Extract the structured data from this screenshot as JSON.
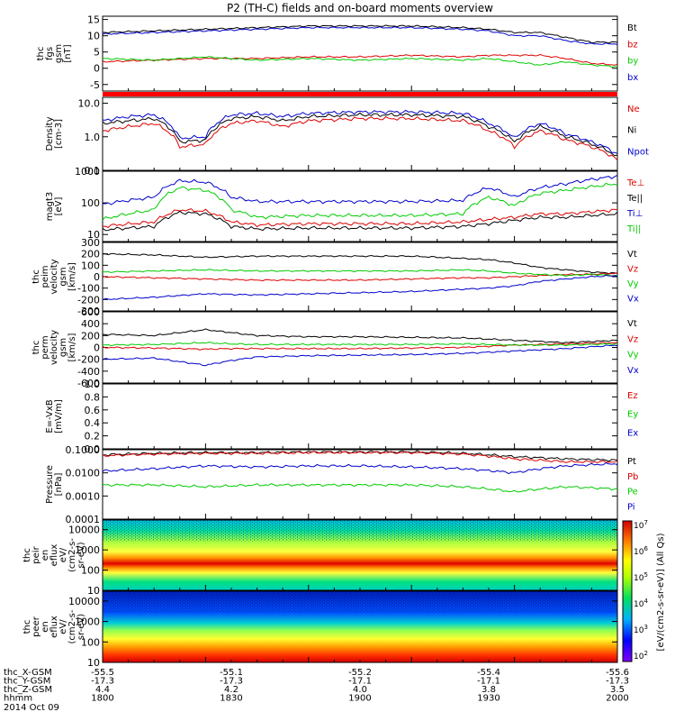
{
  "title": "P2 (TH-C) fields and on-board moments overview",
  "chart_data": [
    {
      "type": "line",
      "panel": "fgs",
      "ylabel": [
        "thc",
        "fgs",
        "gsm",
        "[nT]"
      ],
      "yticks": [
        "15",
        "10",
        "5",
        "0",
        "-5"
      ],
      "ylim": [
        -7,
        16
      ],
      "log": false,
      "series": [
        {
          "name": "Bt",
          "color": "#000000",
          "x": [
            0,
            0.1,
            0.2,
            0.3,
            0.4,
            0.5,
            0.6,
            0.7,
            0.75,
            0.8,
            0.85,
            0.9,
            0.95,
            1.0
          ],
          "values": [
            11,
            11.5,
            12,
            12.5,
            13,
            13,
            13,
            12.5,
            12,
            11,
            11,
            9.5,
            8,
            8
          ]
        },
        {
          "name": "bz",
          "color": "#dd0000",
          "x": [
            0,
            0.1,
            0.2,
            0.3,
            0.4,
            0.5,
            0.6,
            0.7,
            0.75,
            0.8,
            0.85,
            0.9,
            0.95,
            1.0
          ],
          "values": [
            2,
            2.5,
            3,
            3,
            3.5,
            3.5,
            4,
            3.5,
            4,
            4,
            4,
            3,
            1.5,
            1
          ]
        },
        {
          "name": "by",
          "color": "#00cc00",
          "x": [
            0,
            0.1,
            0.2,
            0.3,
            0.4,
            0.5,
            0.6,
            0.7,
            0.75,
            0.8,
            0.85,
            0.9,
            0.95,
            1.0
          ],
          "values": [
            3,
            2.5,
            3.5,
            2.5,
            3,
            2.5,
            3,
            2.5,
            3,
            2,
            1,
            2,
            1,
            0.5
          ]
        },
        {
          "name": "bx",
          "color": "#0000cc",
          "x": [
            0,
            0.1,
            0.2,
            0.3,
            0.4,
            0.5,
            0.6,
            0.7,
            0.75,
            0.8,
            0.85,
            0.9,
            0.95,
            1.0
          ],
          "values": [
            10.5,
            11,
            11.5,
            12,
            12.5,
            12.5,
            12.5,
            12,
            11.5,
            10,
            10,
            8.5,
            7.5,
            7.5
          ]
        }
      ]
    },
    {
      "type": "line",
      "panel": "density",
      "ylabel": [
        "Density",
        "[cm-3]"
      ],
      "yticks": [
        "10.0",
        "1.0",
        "0.1"
      ],
      "ylim": [
        0.1,
        15
      ],
      "log": true,
      "series": [
        {
          "name": "Ne",
          "color": "#dd0000",
          "x": [
            0,
            0.05,
            0.1,
            0.15,
            0.2,
            0.25,
            0.3,
            0.35,
            0.4,
            0.5,
            0.6,
            0.7,
            0.75,
            0.8,
            0.85,
            0.9,
            0.95,
            1.0
          ],
          "values": [
            1.5,
            2,
            2.5,
            0.5,
            0.6,
            2.5,
            3,
            2,
            3,
            3.5,
            3.5,
            3,
            1.5,
            0.5,
            1.5,
            0.8,
            0.5,
            0.2
          ]
        },
        {
          "name": "Ni",
          "color": "#000000",
          "x": [
            0,
            0.05,
            0.1,
            0.15,
            0.2,
            0.25,
            0.3,
            0.35,
            0.4,
            0.5,
            0.6,
            0.7,
            0.75,
            0.8,
            0.85,
            0.9,
            0.95,
            1.0
          ],
          "values": [
            2.5,
            3,
            3.5,
            0.7,
            0.8,
            3.5,
            4,
            3,
            4,
            4.5,
            4.5,
            4,
            2,
            0.7,
            2,
            1,
            0.6,
            0.25
          ]
        },
        {
          "name": "Npot",
          "color": "#0000cc",
          "x": [
            0,
            0.05,
            0.1,
            0.15,
            0.2,
            0.25,
            0.3,
            0.35,
            0.4,
            0.5,
            0.6,
            0.7,
            0.75,
            0.8,
            0.85,
            0.9,
            0.95,
            1.0
          ],
          "values": [
            3,
            4,
            4.5,
            0.9,
            1,
            4.5,
            5,
            4,
            5,
            5.5,
            5.5,
            5,
            2.5,
            0.9,
            2.5,
            1.2,
            0.7,
            0.3
          ]
        }
      ]
    },
    {
      "type": "line",
      "panel": "moms",
      "ylabel": [
        "magt3",
        "[eV]"
      ],
      "yticks": [
        "1000",
        "100",
        "10"
      ],
      "ylim": [
        6,
        1000
      ],
      "log": true,
      "series": [
        {
          "name": "Te⊥",
          "color": "#dd0000",
          "x": [
            0,
            0.1,
            0.15,
            0.2,
            0.25,
            0.3,
            0.4,
            0.5,
            0.6,
            0.7,
            0.75,
            0.8,
            0.85,
            0.9,
            1.0
          ],
          "values": [
            18,
            25,
            60,
            55,
            25,
            20,
            22,
            22,
            22,
            25,
            30,
            35,
            45,
            45,
            60
          ]
        },
        {
          "name": "Te||",
          "color": "#000000",
          "x": [
            0,
            0.1,
            0.15,
            0.2,
            0.25,
            0.3,
            0.4,
            0.5,
            0.6,
            0.7,
            0.75,
            0.8,
            0.85,
            0.9,
            1.0
          ],
          "values": [
            14,
            18,
            50,
            45,
            18,
            15,
            16,
            16,
            16,
            18,
            22,
            28,
            35,
            35,
            45
          ]
        },
        {
          "name": "Ti⊥",
          "color": "#0000cc",
          "x": [
            0,
            0.1,
            0.15,
            0.2,
            0.25,
            0.3,
            0.4,
            0.5,
            0.6,
            0.7,
            0.75,
            0.8,
            0.85,
            0.9,
            1.0
          ],
          "values": [
            90,
            150,
            500,
            450,
            150,
            110,
            110,
            110,
            110,
            120,
            300,
            150,
            300,
            400,
            700
          ]
        },
        {
          "name": "Ti||",
          "color": "#00cc00",
          "x": [
            0,
            0.1,
            0.15,
            0.2,
            0.25,
            0.3,
            0.4,
            0.5,
            0.6,
            0.7,
            0.75,
            0.8,
            0.85,
            0.9,
            1.0
          ],
          "values": [
            30,
            60,
            300,
            250,
            60,
            35,
            40,
            40,
            40,
            45,
            150,
            80,
            200,
            250,
            400
          ]
        }
      ]
    },
    {
      "type": "line",
      "panel": "peim_velocity",
      "ylabel": [
        "thc",
        "peim",
        "velocity",
        "gsm",
        "[km/s]"
      ],
      "yticks": [
        "300",
        "200",
        "100",
        "0",
        "-100",
        "-200",
        "-300"
      ],
      "ylim": [
        -300,
        300
      ],
      "log": false,
      "series": [
        {
          "name": "Vt",
          "color": "#000000",
          "x": [
            0,
            0.1,
            0.2,
            0.3,
            0.4,
            0.5,
            0.6,
            0.7,
            0.75,
            0.8,
            0.85,
            0.9,
            0.95,
            1.0
          ],
          "values": [
            200,
            190,
            170,
            180,
            180,
            180,
            180,
            160,
            150,
            120,
            80,
            60,
            40,
            30
          ]
        },
        {
          "name": "Vz",
          "color": "#dd0000",
          "x": [
            0,
            0.1,
            0.2,
            0.3,
            0.4,
            0.5,
            0.6,
            0.7,
            0.75,
            0.8,
            0.85,
            0.9,
            0.95,
            1.0
          ],
          "values": [
            0,
            -10,
            -20,
            -30,
            -30,
            -30,
            -20,
            -10,
            -10,
            0,
            10,
            20,
            20,
            30
          ]
        },
        {
          "name": "Vy",
          "color": "#00cc00",
          "x": [
            0,
            0.1,
            0.2,
            0.3,
            0.4,
            0.5,
            0.6,
            0.7,
            0.75,
            0.8,
            0.85,
            0.9,
            0.95,
            1.0
          ],
          "values": [
            40,
            50,
            60,
            50,
            50,
            50,
            50,
            60,
            50,
            30,
            20,
            10,
            20,
            10
          ]
        },
        {
          "name": "Vx",
          "color": "#0000cc",
          "x": [
            0,
            0.1,
            0.2,
            0.3,
            0.4,
            0.5,
            0.6,
            0.7,
            0.75,
            0.8,
            0.85,
            0.9,
            0.95,
            1.0
          ],
          "values": [
            -200,
            -180,
            -150,
            -160,
            -150,
            -140,
            -130,
            -110,
            -100,
            -80,
            -40,
            -20,
            0,
            10
          ]
        }
      ]
    },
    {
      "type": "line",
      "panel": "perm_velocity",
      "ylabel": [
        "thc",
        "perm",
        "velocity",
        "gsm",
        "[km/s]"
      ],
      "yticks": [
        "600",
        "400",
        "200",
        "0",
        "-200",
        "-400",
        "-600"
      ],
      "ylim": [
        -600,
        600
      ],
      "log": false,
      "series": [
        {
          "name": "Vt",
          "color": "#000000",
          "x": [
            0,
            0.1,
            0.2,
            0.25,
            0.3,
            0.4,
            0.5,
            0.6,
            0.7,
            0.8,
            0.9,
            1.0
          ],
          "values": [
            220,
            200,
            300,
            250,
            200,
            180,
            180,
            170,
            160,
            120,
            80,
            120
          ]
        },
        {
          "name": "Vz",
          "color": "#dd0000",
          "x": [
            0,
            0.1,
            0.2,
            0.25,
            0.3,
            0.4,
            0.5,
            0.6,
            0.7,
            0.8,
            0.9,
            1.0
          ],
          "values": [
            0,
            -10,
            -30,
            -20,
            -20,
            -20,
            -20,
            -10,
            0,
            40,
            60,
            80
          ]
        },
        {
          "name": "Vy",
          "color": "#00cc00",
          "x": [
            0,
            0.1,
            0.2,
            0.25,
            0.3,
            0.4,
            0.5,
            0.6,
            0.7,
            0.8,
            0.9,
            1.0
          ],
          "values": [
            40,
            50,
            80,
            60,
            50,
            50,
            50,
            50,
            60,
            40,
            40,
            60
          ]
        },
        {
          "name": "Vx",
          "color": "#0000cc",
          "x": [
            0,
            0.1,
            0.2,
            0.25,
            0.3,
            0.4,
            0.5,
            0.6,
            0.7,
            0.8,
            0.9,
            1.0
          ],
          "values": [
            -200,
            -180,
            -300,
            -220,
            -160,
            -140,
            -130,
            -120,
            -100,
            -60,
            -20,
            40
          ]
        }
      ]
    },
    {
      "type": "line",
      "panel": "efield",
      "ylabel": [
        "E=-VxB",
        "[mV/m]"
      ],
      "yticks": [
        "1.0",
        "0.8",
        "0.6",
        "0.4",
        "0.2",
        "0.0"
      ],
      "ylim": [
        0,
        1
      ],
      "log": false,
      "series": [
        {
          "name": "Ez",
          "color": "#dd0000",
          "values": []
        },
        {
          "name": "Ey",
          "color": "#00cc00",
          "values": []
        },
        {
          "name": "Ex",
          "color": "#0000cc",
          "values": []
        }
      ]
    },
    {
      "type": "line",
      "panel": "pressure",
      "ylabel": [
        "Pressure",
        "[nPa]"
      ],
      "yticks": [
        "0.1000",
        "0.0100",
        "0.0010",
        "0.0001"
      ],
      "ylim": [
        0.0001,
        0.1
      ],
      "log": true,
      "series": [
        {
          "name": "Pt",
          "color": "#000000",
          "x": [
            0,
            0.1,
            0.2,
            0.3,
            0.4,
            0.5,
            0.6,
            0.7,
            0.8,
            0.9,
            1.0
          ],
          "values": [
            0.06,
            0.07,
            0.075,
            0.075,
            0.08,
            0.08,
            0.08,
            0.07,
            0.05,
            0.04,
            0.035
          ]
        },
        {
          "name": "Pb",
          "color": "#dd0000",
          "x": [
            0,
            0.1,
            0.2,
            0.3,
            0.4,
            0.5,
            0.6,
            0.7,
            0.8,
            0.9,
            1.0
          ],
          "values": [
            0.055,
            0.065,
            0.07,
            0.07,
            0.075,
            0.075,
            0.075,
            0.065,
            0.04,
            0.03,
            0.03
          ]
        },
        {
          "name": "Pe",
          "color": "#00cc00",
          "x": [
            0,
            0.1,
            0.2,
            0.3,
            0.4,
            0.5,
            0.6,
            0.7,
            0.8,
            0.9,
            1.0
          ],
          "values": [
            0.003,
            0.003,
            0.0025,
            0.003,
            0.003,
            0.003,
            0.003,
            0.0025,
            0.0015,
            0.0025,
            0.002
          ]
        },
        {
          "name": "Pi",
          "color": "#0000cc",
          "x": [
            0,
            0.1,
            0.2,
            0.3,
            0.4,
            0.5,
            0.6,
            0.7,
            0.8,
            0.9,
            1.0
          ],
          "values": [
            0.012,
            0.015,
            0.02,
            0.018,
            0.02,
            0.02,
            0.018,
            0.015,
            0.01,
            0.02,
            0.025
          ]
        }
      ]
    },
    {
      "type": "heatmap",
      "panel": "peir",
      "ylabel": [
        "thc",
        "peir",
        "en",
        "eflux",
        "eV/",
        "(cm2-s-",
        "sr-eV)"
      ],
      "yticks": [
        "10000",
        "1000",
        "100",
        "10"
      ],
      "ylim": [
        10,
        30000
      ],
      "log": true
    },
    {
      "type": "heatmap",
      "panel": "peer",
      "ylabel": [
        "thc",
        "peer",
        "en",
        "eflux",
        "eV/",
        "(cm2-s-",
        "sr-eV)"
      ],
      "yticks": [
        "10000",
        "1000",
        "100",
        "10"
      ],
      "ylim": [
        10,
        30000
      ],
      "log": true
    }
  ],
  "colorbar": {
    "ticks": [
      "10^7",
      "10^6",
      "10^5",
      "10^4",
      "10^3",
      "10^2"
    ],
    "label": "[eV/(cm2-s-sr-eV)] (All Qs)"
  },
  "ephemeris": {
    "rows": [
      {
        "label": "thc_X-GSM",
        "values": [
          "-55.5",
          "-55.1",
          "-55.2",
          "-55.4",
          "-55.6"
        ]
      },
      {
        "label": "thc_Y-GSM",
        "values": [
          "-17.3",
          "-17.3",
          "-17.1",
          "-17.1",
          "-17.3"
        ]
      },
      {
        "label": "thc_Z-GSM",
        "values": [
          "4.4",
          "4.2",
          "4.0",
          "3.8",
          "3.5"
        ]
      },
      {
        "label": "hhmm",
        "values": [
          "1800",
          "1830",
          "1900",
          "1930",
          "2000"
        ]
      }
    ],
    "date": "2014 Oct 09"
  }
}
